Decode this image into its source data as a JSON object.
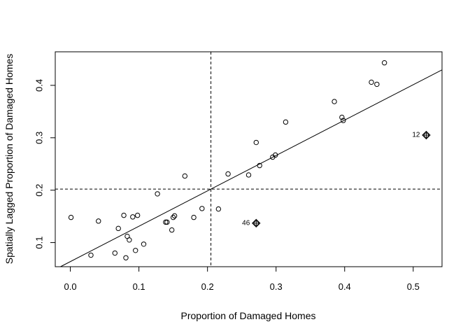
{
  "chart_data": {
    "type": "scatter",
    "title": "",
    "xlabel": "Proportion of Damaged Homes",
    "ylabel": "Spatially Lagged Proportion of Damaged Homes",
    "xlim": [
      -0.022,
      0.542
    ],
    "ylim": [
      0.054,
      0.464
    ],
    "x_ticks": [
      {
        "value": 0.0,
        "label": "0.0"
      },
      {
        "value": 0.1,
        "label": "0.1"
      },
      {
        "value": 0.2,
        "label": "0.2"
      },
      {
        "value": 0.3,
        "label": "0.3"
      },
      {
        "value": 0.4,
        "label": "0.4"
      },
      {
        "value": 0.5,
        "label": "0.5"
      }
    ],
    "y_ticks": [
      {
        "value": 0.1,
        "label": "0.1"
      },
      {
        "value": 0.2,
        "label": "0.2"
      },
      {
        "value": 0.3,
        "label": "0.3"
      },
      {
        "value": 0.4,
        "label": "0.4"
      }
    ],
    "grid": false,
    "x_mean": 0.205,
    "y_mean": 0.202,
    "regression_line": {
      "intercept": 0.0637,
      "slope": 0.675
    },
    "points": [
      {
        "x": 0.001,
        "y": 0.148
      },
      {
        "x": 0.03,
        "y": 0.076
      },
      {
        "x": 0.041,
        "y": 0.141
      },
      {
        "x": 0.065,
        "y": 0.08
      },
      {
        "x": 0.07,
        "y": 0.127
      },
      {
        "x": 0.078,
        "y": 0.152
      },
      {
        "x": 0.081,
        "y": 0.071
      },
      {
        "x": 0.083,
        "y": 0.112
      },
      {
        "x": 0.086,
        "y": 0.105
      },
      {
        "x": 0.091,
        "y": 0.149
      },
      {
        "x": 0.095,
        "y": 0.085
      },
      {
        "x": 0.098,
        "y": 0.152
      },
      {
        "x": 0.107,
        "y": 0.097
      },
      {
        "x": 0.127,
        "y": 0.193
      },
      {
        "x": 0.139,
        "y": 0.139
      },
      {
        "x": 0.141,
        "y": 0.139
      },
      {
        "x": 0.148,
        "y": 0.124
      },
      {
        "x": 0.15,
        "y": 0.148
      },
      {
        "x": 0.152,
        "y": 0.151
      },
      {
        "x": 0.167,
        "y": 0.227
      },
      {
        "x": 0.18,
        "y": 0.148
      },
      {
        "x": 0.192,
        "y": 0.165
      },
      {
        "x": 0.216,
        "y": 0.164
      },
      {
        "x": 0.23,
        "y": 0.231
      },
      {
        "x": 0.26,
        "y": 0.229
      },
      {
        "x": 0.271,
        "y": 0.291
      },
      {
        "x": 0.276,
        "y": 0.247
      },
      {
        "x": 0.295,
        "y": 0.263
      },
      {
        "x": 0.299,
        "y": 0.267
      },
      {
        "x": 0.314,
        "y": 0.33
      },
      {
        "x": 0.385,
        "y": 0.369
      },
      {
        "x": 0.396,
        "y": 0.339
      },
      {
        "x": 0.398,
        "y": 0.333
      },
      {
        "x": 0.439,
        "y": 0.406
      },
      {
        "x": 0.447,
        "y": 0.402
      },
      {
        "x": 0.458,
        "y": 0.443
      },
      {
        "x": 0.271,
        "y": 0.137,
        "influential": true,
        "label": "46"
      },
      {
        "x": 0.519,
        "y": 0.305,
        "influential": true,
        "label": "12"
      }
    ]
  }
}
